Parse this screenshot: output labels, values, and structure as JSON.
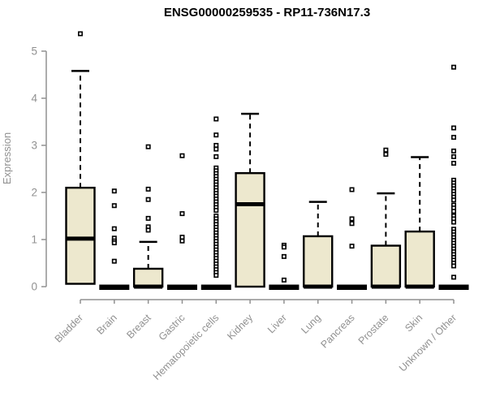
{
  "colors": {
    "box_fill": "#ede8ce",
    "box_stroke": "#000000",
    "axis": "#919191",
    "title": "#000000"
  },
  "chart_data": {
    "type": "boxplot",
    "title": "ENSG00000259535 - RP11-736N17.3",
    "ylabel": "Expression",
    "xlabel": "",
    "ylim": [
      0,
      5.5
    ],
    "yticks": [
      0,
      1,
      2,
      3,
      4,
      5
    ],
    "grid": false,
    "legend": false,
    "categories": [
      "Bladder",
      "Brain",
      "Breast",
      "Gastric",
      "Hematopoietic cells",
      "Kidney",
      "Liver",
      "Lung",
      "Pancreas",
      "Prostate",
      "Skin",
      "Unknown / Other"
    ],
    "series": [
      {
        "name": "Bladder",
        "whisker_low": 0,
        "q1": 0.06,
        "median": 1.02,
        "q3": 2.1,
        "whisker_high": 4.58,
        "outliers": [
          5.37
        ]
      },
      {
        "name": "Brain",
        "whisker_low": 0,
        "q1": 0,
        "median": 0,
        "q3": 0,
        "whisker_high": 0,
        "outliers": [
          2.03,
          1.72,
          1.23,
          1.03,
          0.97,
          0.93,
          0.54
        ]
      },
      {
        "name": "Breast",
        "whisker_low": 0,
        "q1": 0,
        "median": 0,
        "q3": 0.38,
        "whisker_high": 0.95,
        "outliers": [
          2.97,
          2.07,
          1.85,
          1.45,
          1.27,
          1.2
        ]
      },
      {
        "name": "Gastric",
        "whisker_low": 0,
        "q1": 0,
        "median": 0,
        "q3": 0,
        "whisker_high": 0,
        "outliers": [
          2.78,
          1.55,
          1.05,
          0.97
        ]
      },
      {
        "name": "Hematopoietic cells",
        "whisker_low": 0,
        "q1": 0,
        "median": 0,
        "q3": 0,
        "whisker_high": 0,
        "outliers": [
          3.56,
          3.22,
          3.0,
          2.92,
          2.76,
          2.52,
          2.46,
          2.4,
          2.34,
          2.28,
          2.22,
          2.16,
          2.1,
          2.04,
          1.98,
          1.92,
          1.86,
          1.8,
          1.74,
          1.68,
          1.62,
          1.5,
          1.44,
          1.38,
          1.32,
          1.26,
          1.2,
          1.14,
          1.08,
          1.02,
          0.96,
          0.9,
          0.84,
          0.78,
          0.72,
          0.66,
          0.6,
          0.54,
          0.48,
          0.42,
          0.36,
          0.3,
          0.24
        ]
      },
      {
        "name": "Kidney",
        "whisker_low": 0,
        "q1": 0,
        "median": 1.75,
        "q3": 2.41,
        "whisker_high": 3.67,
        "outliers": []
      },
      {
        "name": "Liver",
        "whisker_low": 0,
        "q1": 0,
        "median": 0,
        "q3": 0,
        "whisker_high": 0,
        "outliers": [
          0.88,
          0.84,
          0.64,
          0.14
        ]
      },
      {
        "name": "Lung",
        "whisker_low": 0,
        "q1": 0,
        "median": 0,
        "q3": 1.07,
        "whisker_high": 1.8,
        "outliers": []
      },
      {
        "name": "Pancreas",
        "whisker_low": 0,
        "q1": 0,
        "median": 0,
        "q3": 0,
        "whisker_high": 0,
        "outliers": [
          2.06,
          1.44,
          1.34,
          0.86
        ]
      },
      {
        "name": "Prostate",
        "whisker_low": 0,
        "q1": 0,
        "median": 0,
        "q3": 0.87,
        "whisker_high": 1.98,
        "outliers": [
          2.9,
          2.81
        ]
      },
      {
        "name": "Skin",
        "whisker_low": 0,
        "q1": 0,
        "median": 0,
        "q3": 1.17,
        "whisker_high": 2.75,
        "outliers": []
      },
      {
        "name": "Unknown / Other",
        "whisker_low": 0,
        "q1": 0,
        "median": 0,
        "q3": 0,
        "whisker_high": 0,
        "outliers": [
          4.66,
          3.37,
          3.17,
          2.88,
          2.76,
          2.62,
          2.26,
          2.2,
          2.14,
          2.08,
          2.02,
          1.96,
          1.9,
          1.84,
          1.73,
          1.67,
          1.6,
          1.5,
          1.44,
          1.37,
          1.22,
          1.16,
          1.1,
          1.04,
          0.98,
          0.92,
          0.86,
          0.8,
          0.74,
          0.68,
          0.62,
          0.56,
          0.5,
          0.44,
          0.2
        ]
      }
    ]
  }
}
